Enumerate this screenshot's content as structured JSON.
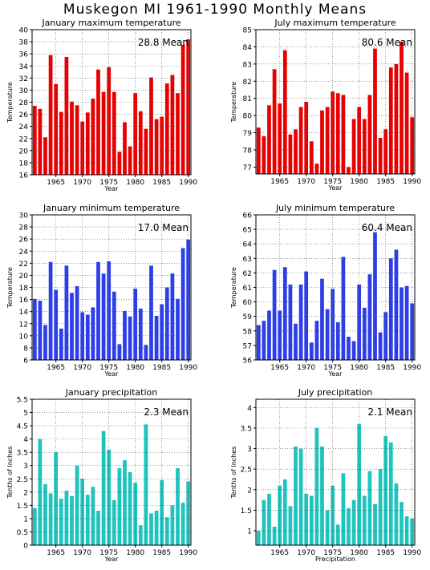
{
  "title": "Muskegon MI   1961-1990  Monthly Means",
  "chart_data": [
    {
      "type": "bar",
      "title": "January maximum temperature",
      "mean_label": "28.8  Mean",
      "xlabel": "Year",
      "ylabel": "Temperature",
      "color": "#e80000",
      "x": [
        1961,
        1962,
        1963,
        1964,
        1965,
        1966,
        1967,
        1968,
        1969,
        1970,
        1971,
        1972,
        1973,
        1974,
        1975,
        1976,
        1977,
        1978,
        1979,
        1980,
        1981,
        1982,
        1983,
        1984,
        1985,
        1986,
        1987,
        1988,
        1989,
        1990
      ],
      "values": [
        27.4,
        26.9,
        22.2,
        35.8,
        31.0,
        26.4,
        35.5,
        28.1,
        27.5,
        24.8,
        26.3,
        28.6,
        33.4,
        29.7,
        33.8,
        29.7,
        19.8,
        24.7,
        20.7,
        29.5,
        26.5,
        23.6,
        32.1,
        25.2,
        25.6,
        31.1,
        32.5,
        29.5,
        37.5,
        38.4
      ],
      "ylim": [
        16,
        40
      ],
      "yticks": [
        16,
        18,
        20,
        22,
        24,
        26,
        28,
        30,
        32,
        34,
        36,
        38,
        40
      ],
      "xticks": [
        1965,
        1970,
        1975,
        1980,
        1985,
        1990
      ]
    },
    {
      "type": "bar",
      "title": "July maximum temperature",
      "mean_label": "80.6  Mean",
      "xlabel": "Year",
      "ylabel": "Temperature",
      "color": "#e80000",
      "x": [
        1961,
        1962,
        1963,
        1964,
        1965,
        1966,
        1967,
        1968,
        1969,
        1970,
        1971,
        1972,
        1973,
        1974,
        1975,
        1976,
        1977,
        1978,
        1979,
        1980,
        1981,
        1982,
        1983,
        1984,
        1985,
        1986,
        1987,
        1988,
        1989,
        1990
      ],
      "values": [
        79.3,
        78.8,
        80.6,
        82.7,
        80.7,
        83.8,
        78.9,
        79.2,
        80.5,
        80.8,
        78.5,
        77.2,
        80.3,
        80.5,
        81.4,
        81.3,
        81.2,
        77.0,
        79.8,
        80.5,
        79.8,
        81.2,
        83.9,
        78.7,
        79.2,
        82.8,
        83.0,
        84.3,
        82.5,
        79.9
      ],
      "ylim": [
        76.6,
        85
      ],
      "yticks": [
        77,
        78,
        79,
        80,
        81,
        82,
        83,
        84,
        85
      ],
      "xticks": [
        1965,
        1970,
        1975,
        1980,
        1985,
        1990
      ]
    },
    {
      "type": "bar",
      "title": "January minimum temperature",
      "mean_label": "17.0  Mean",
      "xlabel": "Year",
      "ylabel": "Temperature",
      "color": "#2d3ee8",
      "x": [
        1961,
        1962,
        1963,
        1964,
        1965,
        1966,
        1967,
        1968,
        1969,
        1970,
        1971,
        1972,
        1973,
        1974,
        1975,
        1976,
        1977,
        1978,
        1979,
        1980,
        1981,
        1982,
        1983,
        1984,
        1985,
        1986,
        1987,
        1988,
        1989,
        1990
      ],
      "values": [
        16.1,
        15.8,
        11.8,
        22.2,
        17.6,
        11.2,
        21.6,
        17.1,
        18.2,
        13.9,
        13.5,
        14.7,
        22.2,
        20.3,
        22.3,
        17.3,
        8.6,
        14.1,
        13.2,
        17.8,
        14.5,
        8.5,
        21.6,
        13.3,
        15.2,
        18.0,
        20.3,
        16.1,
        24.5,
        25.9
      ],
      "ylim": [
        6,
        30
      ],
      "yticks": [
        6,
        8,
        10,
        12,
        14,
        16,
        18,
        20,
        22,
        24,
        26,
        28,
        30
      ],
      "xticks": [
        1965,
        1970,
        1975,
        1980,
        1985,
        1990
      ]
    },
    {
      "type": "bar",
      "title": "July minimum temperature",
      "mean_label": "60.4  Mean",
      "xlabel": "Year",
      "ylabel": "Temperature",
      "color": "#2d3ee8",
      "x": [
        1961,
        1962,
        1963,
        1964,
        1965,
        1966,
        1967,
        1968,
        1969,
        1970,
        1971,
        1972,
        1973,
        1974,
        1975,
        1976,
        1977,
        1978,
        1979,
        1980,
        1981,
        1982,
        1983,
        1984,
        1985,
        1986,
        1987,
        1988,
        1989,
        1990
      ],
      "values": [
        58.4,
        58.7,
        59.4,
        62.2,
        59.4,
        62.4,
        61.2,
        58.5,
        61.2,
        62.1,
        57.2,
        58.7,
        61.6,
        59.5,
        60.9,
        58.6,
        63.1,
        57.6,
        57.3,
        61.2,
        59.6,
        61.9,
        64.8,
        57.9,
        59.3,
        63.0,
        63.6,
        61.0,
        61.1,
        59.9
      ],
      "ylim": [
        56,
        66
      ],
      "yticks": [
        56,
        57,
        58,
        59,
        60,
        61,
        62,
        63,
        64,
        65,
        66
      ],
      "xticks": [
        1965,
        1970,
        1975,
        1980,
        1985,
        1990
      ]
    },
    {
      "type": "bar",
      "title": "January precipitation",
      "mean_label": "2.3  Mean",
      "xlabel": "Year",
      "ylabel": "Tenths of Inches",
      "color": "#1ec4be",
      "x": [
        1961,
        1962,
        1963,
        1964,
        1965,
        1966,
        1967,
        1968,
        1969,
        1970,
        1971,
        1972,
        1973,
        1974,
        1975,
        1976,
        1977,
        1978,
        1979,
        1980,
        1981,
        1982,
        1983,
        1984,
        1985,
        1986,
        1987,
        1988,
        1989,
        1990
      ],
      "values": [
        1.4,
        4.0,
        2.3,
        1.95,
        3.5,
        1.75,
        2.05,
        1.85,
        3.0,
        2.5,
        1.9,
        2.2,
        1.3,
        4.3,
        3.6,
        1.7,
        2.9,
        3.2,
        2.75,
        2.35,
        0.75,
        4.55,
        1.2,
        1.3,
        2.45,
        1.05,
        1.5,
        2.9,
        1.6,
        2.4
      ],
      "ylim": [
        0,
        5.5
      ],
      "yticks": [
        0,
        0.5,
        1,
        1.5,
        2,
        2.5,
        3,
        3.5,
        4,
        4.5,
        5,
        5.5
      ],
      "xticks": [
        1965,
        1970,
        1975,
        1980,
        1985,
        1990
      ]
    },
    {
      "type": "bar",
      "title": "July precipitation",
      "mean_label": "2.1  Mean",
      "xlabel": "Precipitation",
      "ylabel": "Tenths of Inches",
      "color": "#1ec4be",
      "x": [
        1961,
        1962,
        1963,
        1964,
        1965,
        1966,
        1967,
        1968,
        1969,
        1970,
        1971,
        1972,
        1973,
        1974,
        1975,
        1976,
        1977,
        1978,
        1979,
        1980,
        1981,
        1982,
        1983,
        1984,
        1985,
        1986,
        1987,
        1988,
        1989,
        1990
      ],
      "values": [
        1.0,
        1.75,
        1.9,
        1.1,
        2.1,
        2.25,
        1.6,
        3.05,
        3.0,
        1.9,
        1.85,
        3.5,
        3.05,
        1.5,
        2.1,
        1.15,
        2.4,
        1.55,
        1.75,
        3.6,
        1.85,
        2.45,
        1.65,
        2.5,
        3.3,
        3.15,
        2.15,
        1.7,
        1.35,
        1.3
      ],
      "ylim": [
        0.65,
        4.2
      ],
      "yticks": [
        1,
        1.5,
        2,
        2.5,
        3,
        3.5,
        4
      ],
      "xticks": [
        1965,
        1970,
        1975,
        1980,
        1985,
        1990
      ]
    }
  ]
}
